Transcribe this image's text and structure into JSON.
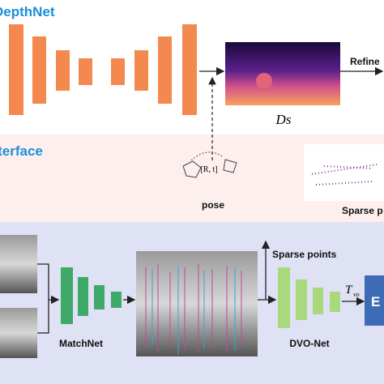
{
  "depth_section": {
    "title": "DepthNet",
    "refine_label": "Refine",
    "depth_label": "Ds"
  },
  "interface_section": {
    "title": "Interface",
    "pose_symbol": "[R, t]",
    "pose_label": "pose",
    "sparse_label": "Sparse p"
  },
  "matching_section": {
    "matchnet_label": "MatchNet",
    "sparse_points_label": "Sparse points",
    "dvo_label": "DVO-Net",
    "output_symbol": "T",
    "output_subscript": "vo",
    "box_label": "E"
  }
}
